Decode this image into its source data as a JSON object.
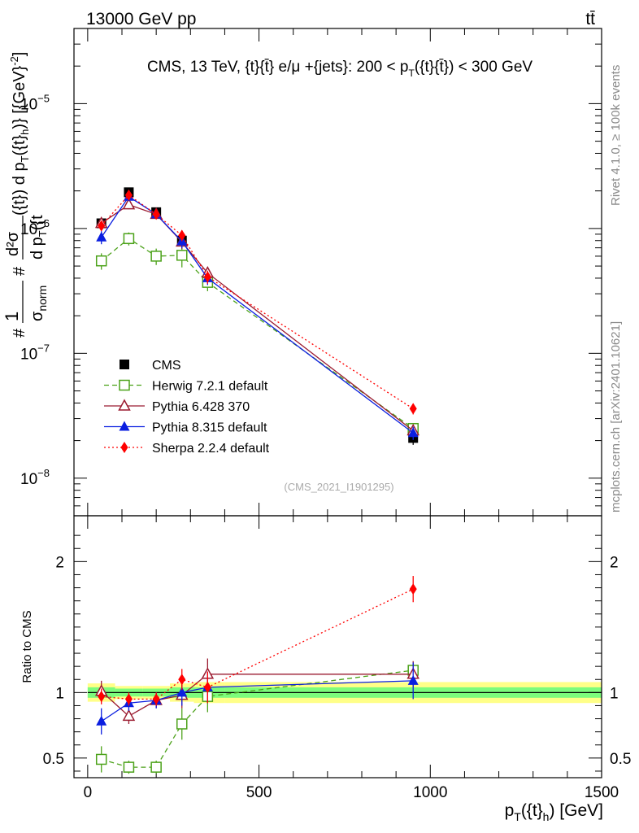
{
  "header": {
    "left": "13000 GeV pp",
    "right": "tt̄"
  },
  "side_labels": {
    "rivet": "Rivet 4.1.0, ≥ 100k events",
    "mcplots": "mcplots.cern.ch [arXiv:2401.10621]"
  },
  "chart_data": [
    {
      "type": "line",
      "panel": "main",
      "title": "CMS, 13 TeV, {t}{t̄} e/μ +{jets}: 200 <  p_T({t}{t̄}) < 300 GeV",
      "title_parts": [
        "CMS, 13 TeV, {t}{t̄} e/μ +{jets}: 200 <  p",
        "T",
        "({t}{t̄}) < 300 GeV"
      ],
      "ylabel": "#1/σ_norm #d²σ/d p_T({t}) d p_T({t}_h) [{GeV}^-2]",
      "ylabel_parts": {
        "hash1": "#",
        "one": "1",
        "sigma_norm_base": "σ",
        "sigma_norm_sub": "norm",
        "hash2": "#",
        "d2sigma": "d²σ",
        "denominator": "d p",
        "denom_sub": "T",
        "denom_rest": "({t}) d p",
        "denom_sub2": "T",
        "denom_tail": "({t",
        "unit_base": "[{GeV}",
        "unit_exp": "-2",
        "unit_close": "]"
      },
      "y_scale": "log",
      "ylim": [
        5e-09,
        4e-05
      ],
      "xlim": [
        -40,
        1500
      ],
      "y_ticks": [
        {
          "value": 1e-08,
          "base": "10",
          "exp": "−8"
        },
        {
          "value": 1e-07,
          "base": "10",
          "exp": "−7"
        },
        {
          "value": 1e-06,
          "base": "10",
          "exp": "−6"
        },
        {
          "value": 1e-05,
          "base": "10",
          "exp": "−5"
        }
      ],
      "watermark": "(CMS_2021_I1901295)",
      "legend_position": "bottom-left",
      "series": [
        {
          "name": "CMS",
          "color": "#000000",
          "marker": "square",
          "line": "none",
          "x": [
            40,
            120,
            200,
            275,
            350,
            950
          ],
          "y": [
            1.1e-06,
            1.95e-06,
            1.35e-06,
            8e-07,
            3.8e-07,
            2.1e-08
          ],
          "err_rel": [
            0.08,
            0.06,
            0.06,
            0.1,
            0.12,
            0.12
          ]
        },
        {
          "name": "Herwig 7.2.1 default",
          "color": "#4ca21a",
          "marker": "open-square",
          "line": "dashed",
          "x": [
            40,
            120,
            200,
            275,
            350,
            950
          ],
          "y": [
            5.5e-07,
            8.3e-07,
            6e-07,
            6.1e-07,
            3.7e-07,
            2.5e-08
          ],
          "err_rel": [
            0.15,
            0.12,
            0.15,
            0.2,
            0.15,
            0.1
          ]
        },
        {
          "name": "Pythia 6.428 370",
          "color": "#9b1b30",
          "marker": "open-triangle",
          "line": "solid",
          "x": [
            40,
            120,
            200,
            275,
            350,
            950
          ],
          "y": [
            1.1e-06,
            1.55e-06,
            1.3e-06,
            7.8e-07,
            4.4e-07,
            2.4e-08
          ],
          "err_rel": [
            0.1,
            0.08,
            0.08,
            0.12,
            0.12,
            0.1
          ]
        },
        {
          "name": "Pythia 8.315 default",
          "color": "#0a1ee0",
          "marker": "triangle",
          "line": "solid",
          "x": [
            40,
            120,
            200,
            275,
            350,
            950
          ],
          "y": [
            8.5e-07,
            1.8e-06,
            1.3e-06,
            7.9e-07,
            4e-07,
            2.3e-08
          ],
          "err_rel": [
            0.12,
            0.08,
            0.08,
            0.12,
            0.12,
            0.12
          ]
        },
        {
          "name": "Sherpa 2.2.4 default",
          "color": "#ff0000",
          "marker": "diamond",
          "line": "dotted",
          "x": [
            40,
            120,
            200,
            275,
            350,
            950
          ],
          "y": [
            1.05e-06,
            1.85e-06,
            1.3e-06,
            8.8e-07,
            4.1e-07,
            3.6e-08
          ],
          "err_rel": [
            0.08,
            0.06,
            0.06,
            0.1,
            0.12,
            0.1
          ]
        }
      ]
    },
    {
      "type": "line",
      "panel": "ratio",
      "ylabel": "Ratio to CMS",
      "xlabel_parts": [
        "p",
        "T",
        "({t}",
        "h",
        ") [GeV]"
      ],
      "xlabel": "p_T({t}_h) [GeV]",
      "ylim": [
        0.35,
        2.35
      ],
      "xlim": [
        -40,
        1500
      ],
      "y_ticks": [
        {
          "value": 0.5,
          "label": "0.5"
        },
        {
          "value": 1,
          "label": "1"
        },
        {
          "value": 2,
          "label": "2"
        }
      ],
      "x_ticks": [
        {
          "value": 0,
          "label": "0"
        },
        {
          "value": 500,
          "label": "500"
        },
        {
          "value": 1000,
          "label": "1000"
        },
        {
          "value": 1500,
          "label": "1500"
        }
      ],
      "bands": [
        {
          "x0": 0,
          "x1": 80,
          "y0": 0.96,
          "y1": 1.04,
          "color": "#7cfc7c"
        },
        {
          "x0": 80,
          "x1": 160,
          "y0": 0.97,
          "y1": 1.03,
          "color": "#7cfc7c"
        },
        {
          "x0": 160,
          "x1": 240,
          "y0": 0.97,
          "y1": 1.03,
          "color": "#7cfc7c"
        },
        {
          "x0": 240,
          "x1": 310,
          "y0": 0.96,
          "y1": 1.04,
          "color": "#7cfc7c"
        },
        {
          "x0": 310,
          "x1": 400,
          "y0": 0.96,
          "y1": 1.04,
          "color": "#7cfc7c"
        },
        {
          "x0": 400,
          "x1": 1500,
          "y0": 0.96,
          "y1": 1.04,
          "color": "#7cfc7c"
        }
      ],
      "outer_bands": [
        {
          "x0": 0,
          "x1": 80,
          "y0": 0.93,
          "y1": 1.07,
          "color": "#ffff88"
        },
        {
          "x0": 80,
          "x1": 160,
          "y0": 0.95,
          "y1": 1.05,
          "color": "#ffff88"
        },
        {
          "x0": 160,
          "x1": 240,
          "y0": 0.95,
          "y1": 1.05,
          "color": "#ffff88"
        },
        {
          "x0": 240,
          "x1": 310,
          "y0": 0.93,
          "y1": 1.07,
          "color": "#ffff88"
        },
        {
          "x0": 310,
          "x1": 400,
          "y0": 0.92,
          "y1": 1.08,
          "color": "#ffff88"
        },
        {
          "x0": 400,
          "x1": 1500,
          "y0": 0.92,
          "y1": 1.08,
          "color": "#ffff88"
        }
      ],
      "series": [
        {
          "name": "Herwig 7.2.1 default",
          "color": "#4ca21a",
          "marker": "open-square",
          "line": "dashed",
          "x": [
            40,
            120,
            200,
            275,
            350,
            950
          ],
          "y": [
            0.49,
            0.43,
            0.43,
            0.76,
            0.97,
            1.17
          ],
          "err": [
            0.1,
            0.05,
            0.05,
            0.12,
            0.12,
            0.06
          ]
        },
        {
          "name": "Pythia 6.428 370",
          "color": "#9b1b30",
          "marker": "open-triangle",
          "line": "solid",
          "x": [
            40,
            120,
            200,
            275,
            350,
            950
          ],
          "y": [
            1.01,
            0.82,
            0.94,
            0.98,
            1.14,
            1.14
          ],
          "err": [
            0.08,
            0.06,
            0.06,
            0.1,
            0.12,
            0.1
          ]
        },
        {
          "name": "Pythia 8.315 default",
          "color": "#0a1ee0",
          "marker": "triangle",
          "line": "solid",
          "x": [
            40,
            120,
            200,
            275,
            350,
            950
          ],
          "y": [
            0.78,
            0.92,
            0.94,
            1.0,
            1.04,
            1.09
          ],
          "err": [
            0.1,
            0.06,
            0.06,
            0.1,
            0.12,
            0.14
          ]
        },
        {
          "name": "Sherpa 2.2.4 default",
          "color": "#ff0000",
          "marker": "diamond",
          "line": "dotted",
          "x": [
            40,
            120,
            200,
            275,
            350,
            950
          ],
          "y": [
            0.97,
            0.95,
            0.95,
            1.1,
            1.04,
            1.79
          ],
          "err": [
            0.06,
            0.05,
            0.05,
            0.08,
            0.12,
            0.1
          ]
        }
      ]
    }
  ]
}
